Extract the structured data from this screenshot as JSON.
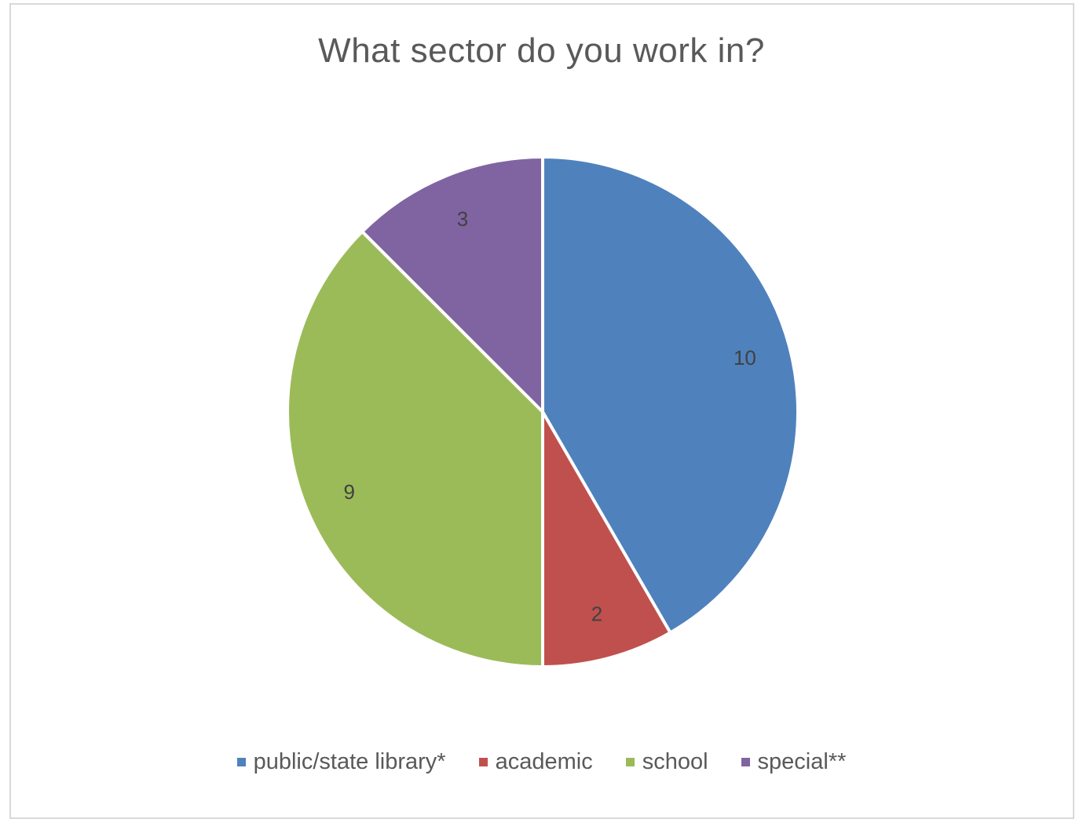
{
  "chart_data": {
    "type": "pie",
    "title": "What sector do you work in?",
    "categories": [
      "public/state library*",
      "academic",
      "school",
      "special**"
    ],
    "values": [
      10,
      2,
      9,
      3
    ],
    "colors": [
      "#4F81BD",
      "#C0504D",
      "#9BBB59",
      "#8064A2"
    ],
    "legend_position": "bottom",
    "data_labels": [
      "10",
      "2",
      "9",
      "3"
    ]
  }
}
